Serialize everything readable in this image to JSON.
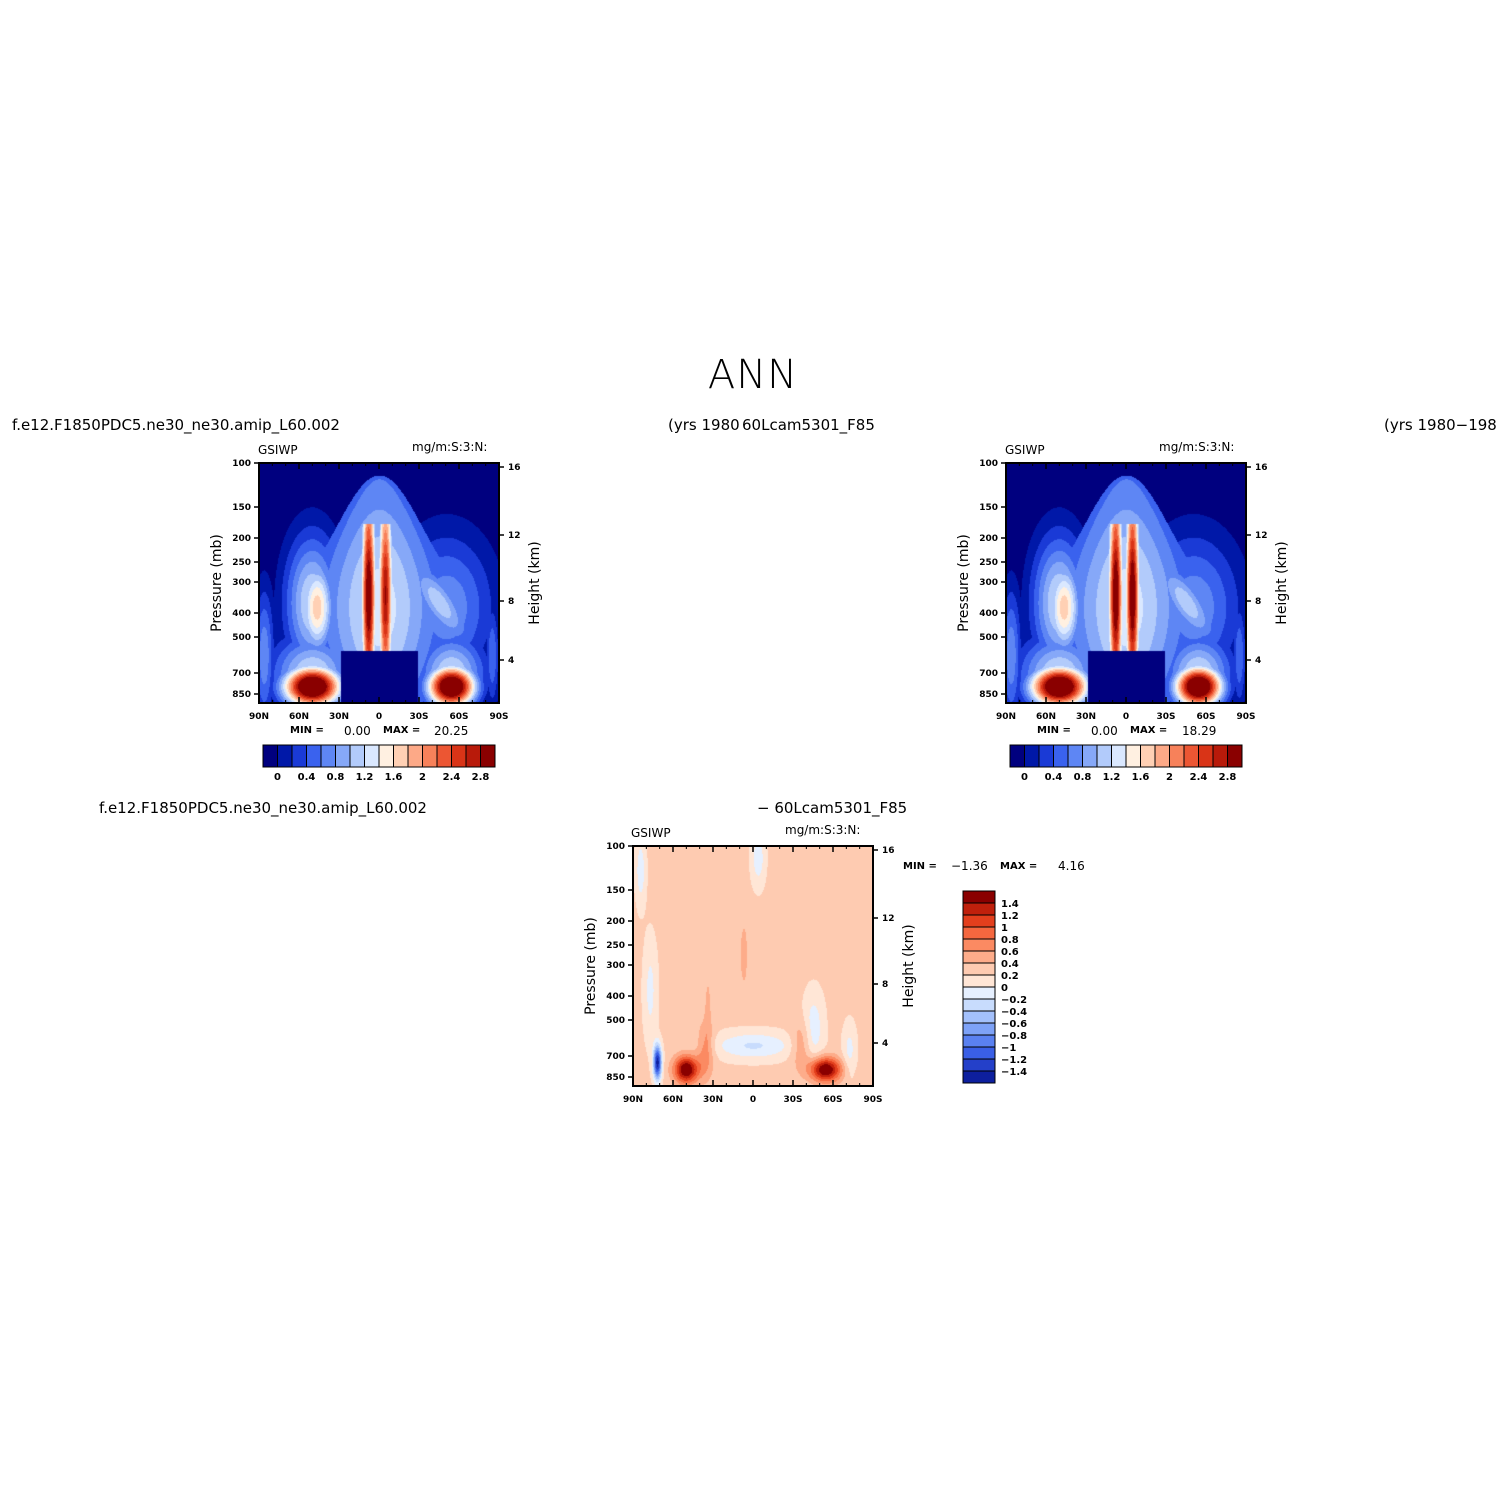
{
  "title": "ANN",
  "panels": [
    {
      "case_label": "f.e12.F1850PDC5.ne30_ne30.amip_L60.002",
      "years_label": "(yrs  1980",
      "variable": "GSIWP",
      "units": "mg/m:S:3:N:",
      "min_label": "MIN =",
      "min_value": "0.00",
      "max_label": "MAX =",
      "max_value": "20.25"
    },
    {
      "case_label": "60Lcam5301_F85",
      "years_label": "(yrs  1980−198",
      "variable": "GSIWP",
      "units": "mg/m:S:3:N:",
      "min_label": "MIN =",
      "min_value": "0.00",
      "max_label": "MAX =",
      "max_value": "18.29"
    },
    {
      "case_label": "f.e12.F1850PDC5.ne30_ne30.amip_L60.002",
      "case_label_2": "−  60Lcam5301_F85",
      "variable": "GSIWP",
      "units": "mg/m:S:3:N:",
      "min_label": "MIN =",
      "min_value": "−1.36",
      "max_label": "MAX =",
      "max_value": "4.16"
    }
  ],
  "chart_data": [
    {
      "type": "heatmap",
      "title": "ANN",
      "variable": "GSIWP",
      "units": "mg/m:S:3:N:",
      "xlabel": "",
      "ylabel": "Pressure (mb)",
      "y2label": "Height (km)",
      "x_ticks": [
        "90N",
        "60N",
        "30N",
        "0",
        "30S",
        "60S",
        "90S"
      ],
      "y_ticks": [
        "100",
        "150",
        "200",
        "250",
        "300",
        "400",
        "500",
        "700",
        "850"
      ],
      "y2_ticks": [
        "16",
        "12",
        "8",
        "4"
      ],
      "y_scale": "log",
      "colorbar_ticks": [
        "0",
        "0.4",
        "0.8",
        "1.2",
        "1.6",
        "2",
        "2.4",
        "2.8"
      ],
      "colorbar_colors": [
        "#00007f",
        "#0018a8",
        "#1a3ad6",
        "#3a62ee",
        "#5e86f4",
        "#86a8f8",
        "#b2cbfb",
        "#dae8ff",
        "#fff0e1",
        "#ffd0b4",
        "#fda987",
        "#f7815a",
        "#ec5633",
        "#d93417",
        "#b81a0a",
        "#8a0000"
      ],
      "min": 0.0,
      "max": 20.25
    },
    {
      "type": "heatmap",
      "variable": "GSIWP",
      "units": "mg/m:S:3:N:",
      "xlabel": "",
      "ylabel": "Pressure (mb)",
      "y2label": "Height (km)",
      "x_ticks": [
        "90N",
        "60N",
        "30N",
        "0",
        "30S",
        "60S",
        "90S"
      ],
      "y_ticks": [
        "100",
        "150",
        "200",
        "250",
        "300",
        "400",
        "500",
        "700",
        "850"
      ],
      "y2_ticks": [
        "16",
        "12",
        "8",
        "4"
      ],
      "y_scale": "log",
      "colorbar_ticks": [
        "0",
        "0.4",
        "0.8",
        "1.2",
        "1.6",
        "2",
        "2.4",
        "2.8"
      ],
      "min": 0.0,
      "max": 18.29
    },
    {
      "type": "heatmap",
      "variable": "GSIWP",
      "units": "mg/m:S:3:N:",
      "xlabel": "",
      "ylabel": "Pressure (mb)",
      "y2label": "Height (km)",
      "x_ticks": [
        "90N",
        "60N",
        "30N",
        "0",
        "30S",
        "60S",
        "90S"
      ],
      "y_ticks": [
        "100",
        "150",
        "200",
        "250",
        "300",
        "400",
        "500",
        "700",
        "850"
      ],
      "y2_ticks": [
        "16",
        "12",
        "8",
        "4"
      ],
      "y_scale": "log",
      "colorbar_ticks": [
        "1.4",
        "1.2",
        "1",
        "0.8",
        "0.6",
        "0.4",
        "0.2",
        "0",
        "−0.2",
        "−0.4",
        "−0.6",
        "−0.8",
        "−1",
        "−1.2",
        "−1.4"
      ],
      "colorbar_colors": [
        "#8a0000",
        "#c0200c",
        "#e33f1d",
        "#f5673f",
        "#fb8a62",
        "#fdac8a",
        "#fecbb1",
        "#ffe6d6",
        "#e6f0ff",
        "#c8dcfd",
        "#a3c0fb",
        "#7ea2f7",
        "#5a81f1",
        "#3a5fe6",
        "#2440c9",
        "#0d1f9e"
      ],
      "min": -1.36,
      "max": 4.16
    }
  ]
}
